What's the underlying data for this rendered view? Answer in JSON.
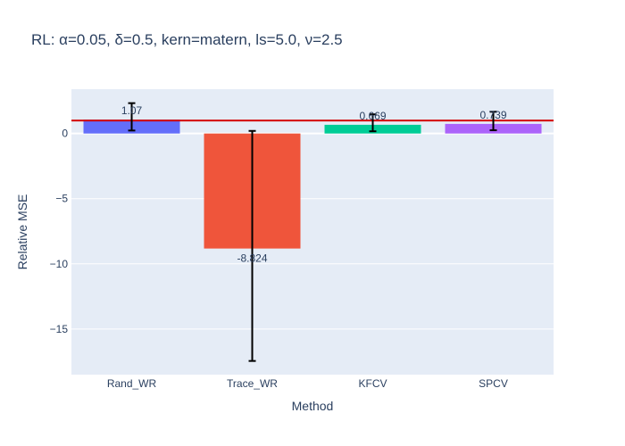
{
  "chart_data": {
    "type": "bar",
    "title": "RL: α=0.05, δ=0.5, kern=matern, ls=5.0, ν=2.5",
    "xlabel": "Method",
    "ylabel": "Relative MSE",
    "categories": [
      "Rand_WR",
      "Trace_WR",
      "KFCV",
      "SPCV"
    ],
    "values": [
      1.07,
      -8.824,
      0.669,
      0.739
    ],
    "value_labels": [
      "1.07",
      "-8.824",
      "0.669",
      "0.739"
    ],
    "error_low": [
      0.23,
      0.2,
      0.17,
      0.25
    ],
    "error_high": [
      2.33,
      -17.45,
      1.47,
      1.67
    ],
    "colors": [
      "#636efa",
      "#ef553b",
      "#00cc96",
      "#ab63fa"
    ],
    "reference_line": {
      "y": 1,
      "color": "#d40000"
    },
    "ylim": [
      -18.5,
      3.4
    ],
    "yticks": [
      0,
      -5,
      -10,
      -15
    ],
    "ytick_labels": [
      "0",
      "−5",
      "−10",
      "−15"
    ],
    "grid": true,
    "background": "#e5ecf6"
  }
}
